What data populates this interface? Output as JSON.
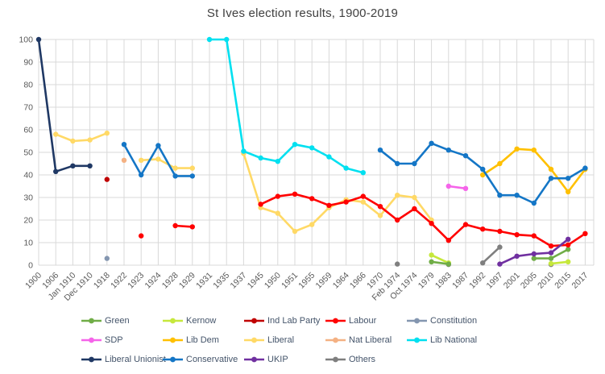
{
  "chart_data": {
    "type": "line",
    "title": "St Ives election results, 1900-2019",
    "categories": [
      "1900",
      "1906",
      "Jan 1910",
      "Dec 1910",
      "1918",
      "1922",
      "1923",
      "1924",
      "1928",
      "1929",
      "1931",
      "1935",
      "1937",
      "1945",
      "1950",
      "1951",
      "1955",
      "1959",
      "1964",
      "1966",
      "1970",
      "Feb 1974",
      "Oct 1974",
      "1979",
      "1983",
      "1987",
      "1992",
      "1997",
      "2001",
      "2005",
      "2010",
      "2015",
      "2017"
    ],
    "ylim": [
      0,
      100
    ],
    "ytick_step": 10,
    "grid": true,
    "legend_position": "bottom",
    "units": "percent of vote",
    "colors": {
      "grid": "#d9d9d9",
      "axis_text": "#595959",
      "title_text": "#404040",
      "legend_text": "#44546a",
      "background": "#ffffff"
    },
    "series": [
      {
        "name": "Green",
        "color": "#70ad47",
        "values": [
          null,
          null,
          null,
          null,
          null,
          null,
          null,
          null,
          null,
          null,
          null,
          null,
          null,
          null,
          null,
          null,
          null,
          null,
          null,
          null,
          null,
          null,
          null,
          1.5,
          0.5,
          null,
          null,
          null,
          null,
          3,
          3,
          7,
          null
        ]
      },
      {
        "name": "Kernow",
        "color": "#c6e83c",
        "values": [
          null,
          null,
          null,
          null,
          null,
          null,
          null,
          null,
          null,
          null,
          null,
          null,
          null,
          null,
          null,
          null,
          null,
          null,
          null,
          null,
          null,
          null,
          null,
          4.5,
          1,
          null,
          null,
          null,
          null,
          null,
          0.7,
          1.5,
          null
        ]
      },
      {
        "name": "Ind Lab Party",
        "color": "#c00000",
        "values": [
          null,
          null,
          null,
          null,
          38,
          null,
          null,
          null,
          null,
          null,
          null,
          null,
          null,
          null,
          null,
          null,
          null,
          null,
          null,
          null,
          null,
          null,
          null,
          null,
          null,
          null,
          null,
          null,
          null,
          null,
          null,
          null,
          null
        ]
      },
      {
        "name": "Labour",
        "color": "#ff0000",
        "values": [
          null,
          null,
          null,
          null,
          null,
          null,
          13,
          null,
          17.5,
          17,
          null,
          null,
          null,
          27,
          30.5,
          31.5,
          29.5,
          26.5,
          28,
          30.5,
          26,
          20,
          25,
          18.5,
          11,
          18,
          16,
          15,
          13.5,
          13,
          8.5,
          9,
          14
        ]
      },
      {
        "name": "Constitution",
        "color": "#8496b0",
        "values": [
          null,
          null,
          null,
          null,
          3,
          null,
          null,
          null,
          null,
          null,
          null,
          null,
          null,
          null,
          null,
          null,
          null,
          null,
          null,
          null,
          null,
          null,
          null,
          null,
          null,
          null,
          null,
          null,
          null,
          null,
          null,
          null,
          null
        ]
      },
      {
        "name": "SDP",
        "color": "#f564e9",
        "values": [
          null,
          null,
          null,
          null,
          null,
          null,
          null,
          null,
          null,
          null,
          null,
          null,
          null,
          null,
          null,
          null,
          null,
          null,
          null,
          null,
          null,
          null,
          null,
          null,
          35,
          34,
          null,
          null,
          null,
          null,
          null,
          null,
          null
        ]
      },
      {
        "name": "Lib Dem",
        "color": "#ffc000",
        "values": [
          null,
          null,
          null,
          null,
          null,
          null,
          null,
          null,
          null,
          null,
          null,
          null,
          null,
          null,
          null,
          null,
          null,
          null,
          null,
          null,
          null,
          null,
          null,
          null,
          null,
          null,
          40,
          45,
          51.5,
          51,
          42.5,
          32.5,
          42.5
        ]
      },
      {
        "name": "Liberal",
        "color": "#ffd966",
        "values": [
          null,
          58,
          55,
          55.5,
          58.5,
          null,
          46.5,
          47,
          43,
          43,
          null,
          null,
          49.5,
          25.5,
          23,
          15,
          18,
          25.5,
          29,
          28,
          22,
          31,
          30,
          20,
          null,
          null,
          null,
          null,
          null,
          null,
          null,
          null,
          null
        ]
      },
      {
        "name": "Nat Liberal",
        "color": "#f4b183",
        "values": [
          null,
          null,
          null,
          null,
          null,
          46.5,
          null,
          null,
          null,
          null,
          null,
          null,
          null,
          null,
          null,
          null,
          null,
          null,
          null,
          null,
          null,
          null,
          null,
          null,
          null,
          null,
          null,
          null,
          null,
          null,
          null,
          null,
          null
        ]
      },
      {
        "name": "Lib National",
        "color": "#00e0f0",
        "values": [
          null,
          null,
          null,
          null,
          null,
          null,
          null,
          null,
          null,
          null,
          100,
          100,
          50.5,
          47.5,
          46,
          53.5,
          52,
          48,
          43,
          41,
          null,
          null,
          null,
          null,
          null,
          null,
          null,
          null,
          null,
          null,
          null,
          null,
          null
        ]
      },
      {
        "name": "Liberal Unionist",
        "color": "#1f3864",
        "values": [
          100,
          41.5,
          44,
          44,
          null,
          null,
          null,
          null,
          null,
          null,
          null,
          null,
          null,
          null,
          null,
          null,
          null,
          null,
          null,
          null,
          null,
          null,
          null,
          null,
          null,
          null,
          null,
          null,
          null,
          null,
          null,
          null,
          null
        ]
      },
      {
        "name": "Conservative",
        "color": "#1476c6",
        "values": [
          null,
          null,
          null,
          null,
          null,
          53.5,
          40,
          53,
          39.5,
          39.5,
          null,
          null,
          null,
          null,
          null,
          null,
          null,
          null,
          null,
          null,
          51,
          45,
          45,
          54,
          51,
          48.5,
          42.5,
          31,
          31,
          27.5,
          38.5,
          38.5,
          43
        ]
      },
      {
        "name": "UKIP",
        "color": "#7030a0",
        "values": [
          null,
          null,
          null,
          null,
          null,
          null,
          null,
          null,
          null,
          null,
          null,
          null,
          null,
          null,
          null,
          null,
          null,
          null,
          null,
          null,
          null,
          null,
          null,
          null,
          null,
          null,
          null,
          0.5,
          4,
          5,
          5.5,
          11.5,
          null
        ]
      },
      {
        "name": "Others",
        "color": "#7f7f7f",
        "values": [
          null,
          null,
          null,
          null,
          null,
          null,
          null,
          null,
          null,
          null,
          null,
          null,
          null,
          null,
          null,
          null,
          null,
          null,
          null,
          null,
          null,
          0.5,
          null,
          null,
          0.3,
          null,
          1,
          8,
          null,
          null,
          0.3,
          null,
          null
        ]
      }
    ]
  }
}
